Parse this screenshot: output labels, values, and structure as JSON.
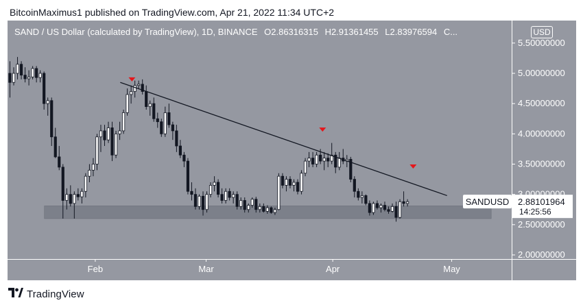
{
  "header": {
    "publisher_line": "BitcoinMaximus1 published on TradingView.com, Apr 21, 2022 11:34 UTC+2"
  },
  "legend": {
    "symbol": "SAND / US Dollar (calculated by TradingView), 1D, BINANCE",
    "o_label": "O",
    "o_value": "2.86316315",
    "h_label": "H",
    "h_value": "2.91361455",
    "l_label": "L",
    "l_value": "2.83976594",
    "c_label": "C..."
  },
  "currency_badge": "USD",
  "price_tag": {
    "symbol": "SANDUSD",
    "price": "2.88101964",
    "countdown": "14:25:56"
  },
  "footer": {
    "brand": "TradingView"
  },
  "colors": {
    "background": "#9598a1",
    "candle_up": "#ffffff",
    "candle_down": "#131722",
    "trendline": "#131722",
    "support_zone": "#787b86",
    "marker": "#e5161b"
  },
  "chart_data": {
    "type": "candlestick",
    "y_axis": {
      "min": 2.0,
      "max": 5.5,
      "ticks": [
        "5.50000000",
        "5.00000000",
        "4.50000000",
        "4.00000000",
        "3.50000000",
        "3.00000000",
        "2.50000000",
        "2.00000000"
      ]
    },
    "x_axis": {
      "ticks": [
        "Feb",
        "Mar",
        "Apr",
        "May"
      ]
    },
    "candles": [
      [
        5.0,
        5.2,
        4.6,
        4.85
      ],
      [
        4.85,
        5.1,
        4.8,
        5.0
      ],
      [
        5.0,
        5.27,
        4.9,
        5.15
      ],
      [
        5.15,
        5.2,
        4.9,
        4.97
      ],
      [
        4.97,
        5.1,
        4.85,
        4.91
      ],
      [
        4.91,
        5.05,
        4.8,
        4.94
      ],
      [
        4.94,
        5.12,
        4.9,
        5.08
      ],
      [
        5.08,
        5.12,
        4.85,
        4.93
      ],
      [
        4.93,
        5.05,
        4.85,
        5.0
      ],
      [
        5.0,
        5.03,
        4.4,
        4.5
      ],
      [
        4.5,
        4.6,
        4.3,
        4.55
      ],
      [
        4.55,
        4.6,
        3.8,
        3.95
      ],
      [
        3.95,
        4.1,
        3.6,
        3.62
      ],
      [
        3.62,
        3.8,
        3.4,
        3.45
      ],
      [
        3.45,
        3.5,
        2.6,
        2.9
      ],
      [
        2.9,
        3.1,
        2.75,
        3.0
      ],
      [
        3.0,
        3.15,
        2.8,
        2.85
      ],
      [
        2.85,
        3.05,
        2.6,
        3.0
      ],
      [
        3.0,
        3.1,
        2.9,
        2.96
      ],
      [
        2.96,
        3.1,
        2.85,
        3.05
      ],
      [
        3.05,
        3.35,
        2.95,
        3.3
      ],
      [
        3.3,
        3.5,
        3.2,
        3.4
      ],
      [
        3.4,
        3.6,
        3.3,
        3.5
      ],
      [
        3.5,
        4.0,
        3.4,
        3.95
      ],
      [
        3.95,
        4.15,
        3.7,
        4.05
      ],
      [
        4.05,
        4.15,
        3.8,
        3.9
      ],
      [
        3.9,
        4.2,
        3.85,
        4.1
      ],
      [
        4.1,
        4.2,
        3.55,
        3.65
      ],
      [
        3.65,
        4.05,
        3.6,
        4.0
      ],
      [
        4.0,
        4.2,
        3.9,
        4.05
      ],
      [
        4.05,
        4.4,
        4.0,
        4.35
      ],
      [
        4.35,
        4.75,
        4.3,
        4.65
      ],
      [
        4.65,
        4.8,
        4.5,
        4.7
      ],
      [
        4.7,
        4.88,
        4.6,
        4.8
      ],
      [
        4.8,
        4.88,
        4.75,
        4.82
      ],
      [
        4.82,
        4.9,
        4.65,
        4.7
      ],
      [
        4.7,
        4.8,
        4.4,
        4.45
      ],
      [
        4.45,
        4.55,
        4.3,
        4.5
      ],
      [
        4.5,
        4.6,
        4.2,
        4.25
      ],
      [
        4.25,
        4.35,
        4.1,
        4.2
      ],
      [
        4.2,
        4.25,
        3.95,
        4.0
      ],
      [
        4.0,
        4.45,
        3.95,
        4.35
      ],
      [
        4.35,
        4.5,
        4.1,
        4.15
      ],
      [
        4.15,
        4.2,
        3.9,
        4.05
      ],
      [
        4.05,
        4.15,
        3.7,
        3.8
      ],
      [
        3.8,
        3.9,
        3.6,
        3.65
      ],
      [
        3.65,
        3.7,
        3.45,
        3.55
      ],
      [
        3.55,
        3.6,
        3.0,
        3.05
      ],
      [
        3.05,
        3.2,
        2.9,
        3.0
      ],
      [
        3.0,
        3.1,
        2.75,
        2.8
      ],
      [
        2.8,
        3.0,
        2.75,
        2.97
      ],
      [
        2.97,
        3.05,
        2.65,
        2.75
      ],
      [
        2.75,
        3.05,
        2.7,
        3.0
      ],
      [
        3.0,
        3.2,
        2.95,
        3.15
      ],
      [
        3.15,
        3.3,
        3.05,
        3.2
      ],
      [
        3.2,
        3.25,
        2.95,
        3.0
      ],
      [
        3.0,
        3.1,
        2.85,
        2.9
      ],
      [
        2.9,
        3.1,
        2.85,
        3.05
      ],
      [
        3.05,
        3.1,
        2.9,
        2.95
      ],
      [
        2.95,
        3.05,
        2.85,
        3.0
      ],
      [
        3.0,
        3.05,
        2.75,
        2.8
      ],
      [
        2.8,
        2.95,
        2.75,
        2.9
      ],
      [
        2.9,
        2.95,
        2.7,
        2.75
      ],
      [
        2.75,
        2.85,
        2.7,
        2.82
      ],
      [
        2.82,
        2.95,
        2.78,
        2.92
      ],
      [
        2.92,
        2.96,
        2.7,
        2.75
      ],
      [
        2.75,
        2.85,
        2.7,
        2.8
      ],
      [
        2.8,
        2.85,
        2.7,
        2.72
      ],
      [
        2.72,
        2.82,
        2.68,
        2.78
      ],
      [
        2.78,
        2.8,
        2.68,
        2.7
      ],
      [
        2.7,
        2.78,
        2.66,
        2.75
      ],
      [
        2.75,
        3.35,
        2.74,
        3.3
      ],
      [
        3.3,
        3.35,
        3.1,
        3.15
      ],
      [
        3.15,
        3.3,
        3.05,
        3.25
      ],
      [
        3.25,
        3.3,
        3.1,
        3.15
      ],
      [
        3.15,
        3.25,
        3.05,
        3.2
      ],
      [
        3.2,
        3.25,
        3.0,
        3.05
      ],
      [
        3.05,
        3.4,
        3.0,
        3.35
      ],
      [
        3.35,
        3.6,
        3.3,
        3.55
      ],
      [
        3.55,
        3.7,
        3.45,
        3.6
      ],
      [
        3.6,
        3.7,
        3.45,
        3.5
      ],
      [
        3.5,
        3.7,
        3.45,
        3.65
      ],
      [
        3.65,
        3.75,
        3.5,
        3.55
      ],
      [
        3.55,
        3.7,
        3.4,
        3.6
      ],
      [
        3.6,
        3.68,
        3.45,
        3.55
      ],
      [
        3.55,
        3.85,
        3.5,
        3.65
      ],
      [
        3.65,
        3.7,
        3.35,
        3.45
      ],
      [
        3.45,
        3.7,
        3.4,
        3.6
      ],
      [
        3.6,
        3.75,
        3.5,
        3.55
      ],
      [
        3.55,
        3.65,
        3.45,
        3.58
      ],
      [
        3.58,
        3.62,
        3.2,
        3.25
      ],
      [
        3.25,
        3.3,
        2.95,
        3.05
      ],
      [
        3.05,
        3.1,
        2.9,
        2.95
      ],
      [
        2.95,
        3.05,
        2.85,
        2.98
      ],
      [
        2.98,
        3.0,
        2.82,
        2.85
      ],
      [
        2.85,
        2.9,
        2.65,
        2.7
      ],
      [
        2.7,
        2.88,
        2.66,
        2.85
      ],
      [
        2.85,
        2.9,
        2.75,
        2.78
      ],
      [
        2.78,
        2.85,
        2.7,
        2.82
      ],
      [
        2.82,
        2.88,
        2.72,
        2.75
      ],
      [
        2.75,
        2.8,
        2.68,
        2.72
      ],
      [
        2.72,
        2.85,
        2.7,
        2.8
      ],
      [
        2.8,
        2.88,
        2.55,
        2.62
      ],
      [
        2.62,
        2.92,
        2.6,
        2.88
      ],
      [
        2.88,
        3.05,
        2.8,
        2.85
      ],
      [
        2.85,
        2.92,
        2.8,
        2.88
      ]
    ],
    "trendline": {
      "from": [
        0.2236,
        4.85
      ],
      "to": [
        0.8718,
        2.98
      ]
    },
    "support_zone": {
      "low": 2.6,
      "high": 2.81,
      "x_from": 0.0731,
      "x_to": 0.9594
    },
    "markers": [
      {
        "x": 0.2468,
        "price": 4.9
      },
      {
        "x": 0.6249,
        "price": 4.07
      },
      {
        "x": 0.8046,
        "price": 3.46
      }
    ],
    "last_price": 2.88101964
  }
}
